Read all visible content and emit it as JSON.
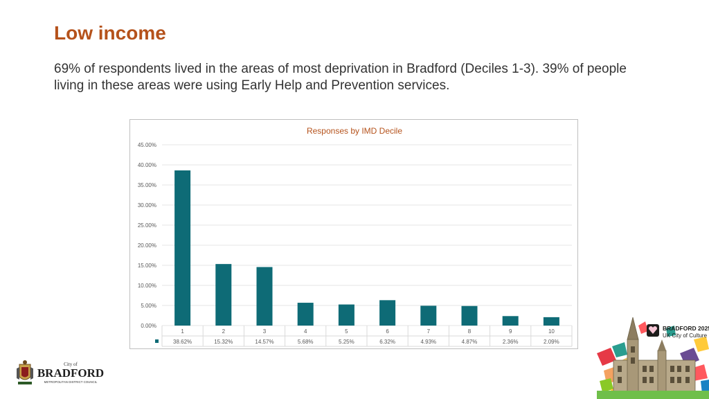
{
  "slide": {
    "title": "Low income",
    "body": "69% of respondents lived in the areas of most deprivation in Bradford (Deciles 1-3). 39% of people living in these areas were using Early Help and Prevention services."
  },
  "chart_data": {
    "type": "bar",
    "title": "Responses by IMD Decile",
    "categories": [
      "1",
      "2",
      "3",
      "4",
      "5",
      "6",
      "7",
      "8",
      "9",
      "10"
    ],
    "values": [
      38.62,
      15.32,
      14.57,
      5.68,
      5.25,
      6.32,
      4.93,
      4.87,
      2.36,
      2.09
    ],
    "value_labels": [
      "38.62%",
      "15.32%",
      "14.57%",
      "5.68%",
      "5.25%",
      "6.32%",
      "4.93%",
      "4.87%",
      "2.36%",
      "2.09%"
    ],
    "yticks": [
      "0.00%",
      "5.00%",
      "10.00%",
      "15.00%",
      "20.00%",
      "25.00%",
      "30.00%",
      "35.00%",
      "40.00%",
      "45.00%"
    ],
    "ylim": [
      0,
      45
    ],
    "xlabel": "",
    "ylabel": "",
    "grid": true,
    "legend": "data-table-below",
    "bar_color": "#0e6b76"
  },
  "logos": {
    "council_small": "City of",
    "council_name": "BRADFORD",
    "council_sub": "METROPOLITAN DISTRICT COUNCIL",
    "culture_name": "BRADFORD 2025",
    "culture_sub": "UK City of Culture"
  },
  "colors": {
    "accent": "#b5521b",
    "bar": "#0e6b76",
    "grid": "#e6e6e6"
  }
}
